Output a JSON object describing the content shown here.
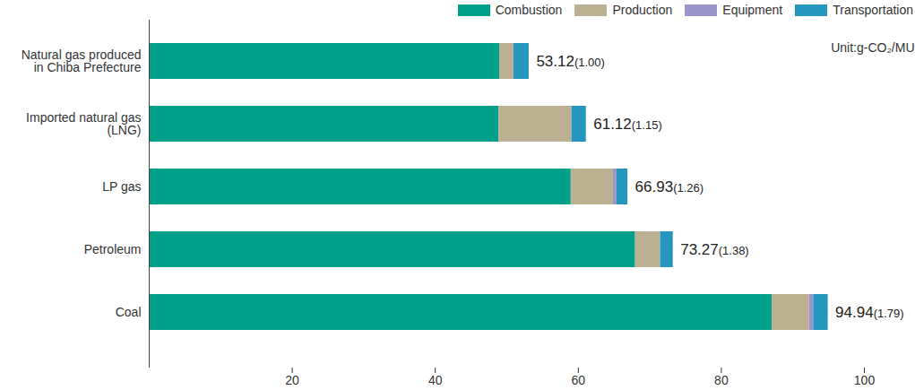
{
  "chart_data": {
    "type": "bar",
    "orientation": "horizontal",
    "stacked": true,
    "grid": false,
    "legend": "top-right",
    "annotations": [
      "Unit:g-CO₂/MU"
    ],
    "categories": [
      "Natural gas produced\nin Chiba Prefecture",
      "Imported natural gas\n(LNG)",
      "LP gas",
      "Petroleum",
      "Coal"
    ],
    "series": [
      {
        "name": "Combustion",
        "color": "#00a08a",
        "values": [
          49.0,
          48.9,
          59.0,
          68.0,
          87.1
        ]
      },
      {
        "name": "Production",
        "color": "#bcb093",
        "values": [
          2.0,
          10.2,
          5.9,
          3.5,
          5.2
        ]
      },
      {
        "name": "Equipment",
        "color": "#9b95c9",
        "values": [
          0,
          0,
          0.5,
          0,
          0.6
        ]
      },
      {
        "name": "Transportation",
        "color": "#2596be",
        "values": [
          2.12,
          2.02,
          1.53,
          1.77,
          2.04
        ]
      }
    ],
    "totals": [
      53.12,
      61.12,
      66.93,
      73.27,
      94.94
    ],
    "total_labels": [
      "53.12(1.00)",
      "61.12(1.15)",
      "66.93(1.26)",
      "73.27(1.38)",
      "94.94(1.79)"
    ],
    "xlim": [
      0,
      100
    ],
    "xticks": [
      20,
      40,
      60,
      80,
      100
    ]
  }
}
